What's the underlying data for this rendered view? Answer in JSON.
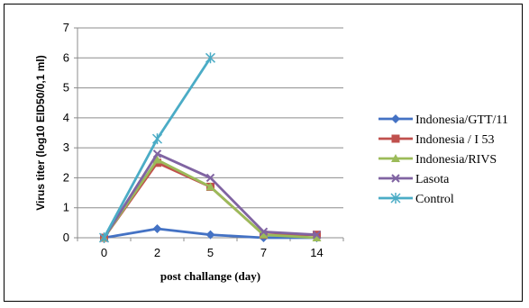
{
  "chart_data": {
    "type": "line",
    "title": "",
    "xlabel": "post challange (day)",
    "ylabel": "Virus titer (log10 EID50/0,1 ml)",
    "categories": [
      "0",
      "2",
      "5",
      "7",
      "14"
    ],
    "ylim": [
      0,
      7
    ],
    "yticks": [
      "0",
      "1",
      "2",
      "3",
      "4",
      "5",
      "6",
      "7"
    ],
    "grid": "horizontal",
    "legend_position": "right",
    "series": [
      {
        "name": "Indonesia/GTT/11",
        "color": "#4472C4",
        "marker": "diamond",
        "values": [
          0,
          0.3,
          0.1,
          0,
          0
        ]
      },
      {
        "name": "Indonesia / I 53",
        "color": "#C0504D",
        "marker": "square",
        "values": [
          0,
          2.5,
          1.7,
          0.1,
          0.1
        ]
      },
      {
        "name": "Indonesia/RIVS",
        "color": "#9BBB59",
        "marker": "triangle",
        "values": [
          0,
          2.6,
          1.7,
          0.1,
          0
        ]
      },
      {
        "name": "Lasota",
        "color": "#8064A2",
        "marker": "x",
        "values": [
          0,
          2.8,
          2.0,
          0.2,
          0.1
        ]
      },
      {
        "name": "Control",
        "color": "#4BACC6",
        "marker": "asterisk",
        "values": [
          0,
          3.3,
          6.0,
          null,
          null
        ]
      }
    ]
  }
}
